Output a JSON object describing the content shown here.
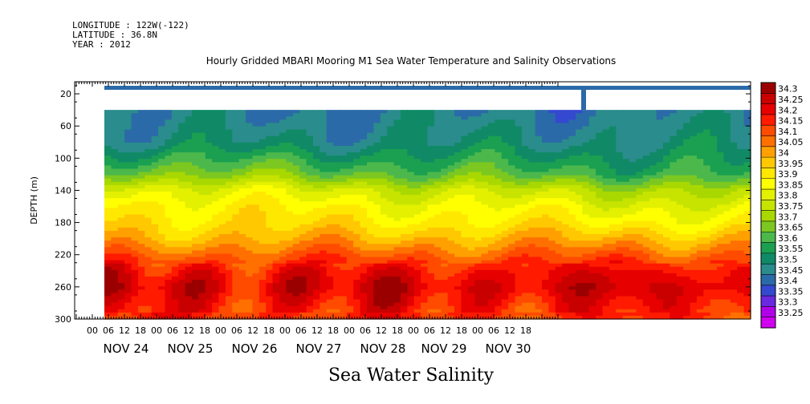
{
  "header": {
    "longitude": "LONGITUDE : 122W(-122)",
    "latitude": "LATITUDE : 36.8N",
    "year": "YEAR : 2012"
  },
  "chart_data": {
    "type": "heatmap",
    "title": "Hourly Gridded MBARI Mooring M1 Sea Water Temperature and Salinity Observations",
    "subtitle": "Sea Water Salinity",
    "ylabel": "DEPTH (m)",
    "ylim": [
      300,
      0
    ],
    "y_ticks": [
      20,
      60,
      100,
      140,
      180,
      220,
      260,
      300
    ],
    "x_hour_ticks": [
      "00",
      "06",
      "12",
      "18",
      "00",
      "06",
      "12",
      "18",
      "00",
      "06",
      "12",
      "18",
      "00",
      "06",
      "12",
      "18",
      "00",
      "06",
      "12",
      "18",
      "00",
      "06",
      "12",
      "18",
      "00",
      "06",
      "12",
      "18"
    ],
    "x_day_labels": [
      "NOV 24",
      "NOV 25",
      "NOV 26",
      "NOV 27",
      "NOV 28",
      "NOV 29",
      "NOV 30"
    ],
    "colorbar_labels": [
      "34.3",
      "34.25",
      "34.2",
      "34.15",
      "34.1",
      "34.05",
      "34",
      "33.95",
      "33.9",
      "33.85",
      "33.8",
      "33.75",
      "33.7",
      "33.65",
      "33.6",
      "33.55",
      "33.5",
      "33.45",
      "33.4",
      "33.35",
      "33.3",
      "33.25"
    ],
    "colorbar_colors": [
      "#9b0000",
      "#c80000",
      "#e60000",
      "#ff1a00",
      "#ff4b00",
      "#ff7000",
      "#ffa000",
      "#ffc800",
      "#ffe800",
      "#ffff00",
      "#e3f000",
      "#c6e400",
      "#a9d800",
      "#7cc820",
      "#4cb84c",
      "#1aa050",
      "#108a66",
      "#2a8c8c",
      "#2b6aa8",
      "#3548d0",
      "#6a28e0",
      "#b000e8",
      "#d000f0"
    ],
    "surface_value": 33.4,
    "depth_profile": [
      {
        "depth": 40,
        "salinity": 33.45
      },
      {
        "depth": 80,
        "salinity": 33.5
      },
      {
        "depth": 100,
        "salinity": 33.6
      },
      {
        "depth": 120,
        "salinity": 33.7
      },
      {
        "depth": 140,
        "salinity": 33.85
      },
      {
        "depth": 160,
        "salinity": 33.92
      },
      {
        "depth": 180,
        "salinity": 33.95
      },
      {
        "depth": 200,
        "salinity": 34.0
      },
      {
        "depth": 220,
        "salinity": 34.1
      },
      {
        "depth": 240,
        "salinity": 34.2
      },
      {
        "depth": 260,
        "salinity": 34.25
      },
      {
        "depth": 280,
        "salinity": 34.2
      },
      {
        "depth": 300,
        "salinity": 34.15
      }
    ]
  }
}
